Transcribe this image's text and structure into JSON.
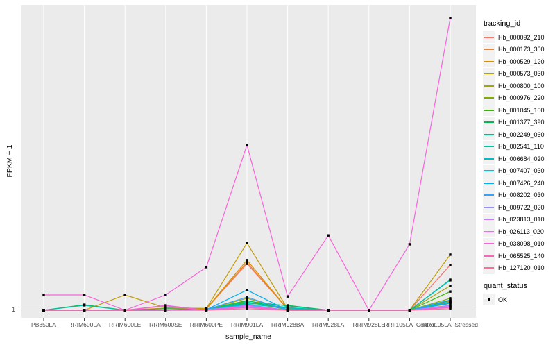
{
  "figure": {
    "y_axis": {
      "title": "FPKM + 1",
      "tick_label": "1"
    },
    "x_axis": {
      "title": "sample_name"
    },
    "legend_tracking": {
      "title": "tracking_id"
    },
    "legend_quant": {
      "title": "quant_status",
      "items": [
        {
          "label": "OK",
          "marker": "black-square"
        }
      ]
    },
    "colors": {
      "panel_bg": "#EBEBEB",
      "gridline": "#FFFFFF",
      "tick_text": "#4D4D4D",
      "axis_text": "#000000",
      "legend_key_bg": "#F2F2F2",
      "point": "#000000"
    }
  },
  "chart_data": {
    "type": "line",
    "title": "",
    "xlabel": "sample_name",
    "ylabel": "FPKM + 1",
    "x_categories": [
      "PB350LA",
      "RRIM600LA",
      "RRIM600LE",
      "RRIM600SE",
      "RRIM600PE",
      "RRIM901LA",
      "RRIM928BA",
      "RRIM928LA",
      "RRIM928LE",
      "RRII105LA_Control",
      "RRII105LA_Stressed"
    ],
    "y_axis_ticks": [
      "1"
    ],
    "scale_note": "Only the tick 'FPKM + 1 = 1' is labeled on the y axis (baseline). Series values below are estimated as the fraction of panel height above that baseline (0 = at 1, 1 = panel top).",
    "grid": true,
    "legend_position": "right",
    "point_marker": "every data point carries a small black square (quant_status = OK)",
    "series": [
      {
        "name": "Hb_000092_210",
        "color": "#F8766D",
        "values": [
          0,
          0,
          0,
          0,
          0.005,
          0.152,
          0.005,
          0,
          0,
          0,
          0.148
        ]
      },
      {
        "name": "Hb_000173_300",
        "color": "#EA8331",
        "values": [
          0,
          0,
          0,
          0,
          0.004,
          0.157,
          0.003,
          0,
          0,
          0,
          0.03
        ]
      },
      {
        "name": "Hb_000529_120",
        "color": "#D89000",
        "values": [
          0,
          0,
          0,
          0.007,
          0.005,
          0.164,
          0.004,
          0,
          0,
          0,
          0.022
        ]
      },
      {
        "name": "Hb_000573_030",
        "color": "#C09B00",
        "values": [
          0,
          0,
          0.05,
          0.008,
          0.006,
          0.22,
          0.005,
          0,
          0,
          0,
          0.182
        ]
      },
      {
        "name": "Hb_000800_100",
        "color": "#A3A500",
        "values": [
          0,
          0,
          0,
          0,
          0.002,
          0.039,
          0.002,
          0,
          0,
          0,
          0.08
        ]
      },
      {
        "name": "Hb_000976_220",
        "color": "#7CAE00",
        "values": [
          0,
          0,
          0,
          0,
          0.002,
          0.027,
          0.002,
          0,
          0,
          0,
          0.039
        ]
      },
      {
        "name": "Hb_001045_100",
        "color": "#39B600",
        "values": [
          0,
          0,
          0,
          0,
          0.002,
          0.032,
          0.002,
          0,
          0,
          0,
          0.061
        ]
      },
      {
        "name": "Hb_001377_390",
        "color": "#00BB4E",
        "values": [
          0,
          0.018,
          0,
          0,
          0.002,
          0.023,
          0.016,
          0,
          0,
          0,
          0.032
        ]
      },
      {
        "name": "Hb_002249_060",
        "color": "#00BF7D",
        "values": [
          0,
          0,
          0,
          0.005,
          0.002,
          0.03,
          0.014,
          0,
          0,
          0,
          0.1
        ]
      },
      {
        "name": "Hb_002541_110",
        "color": "#00C1A3",
        "values": [
          0,
          0.016,
          0,
          0,
          0.002,
          0.025,
          0.009,
          0,
          0,
          0,
          0.027
        ]
      },
      {
        "name": "Hb_006684_020",
        "color": "#00BFC4",
        "values": [
          0,
          0,
          0,
          0,
          0.002,
          0.02,
          0.007,
          0,
          0,
          0,
          0.098
        ]
      },
      {
        "name": "Hb_007407_030",
        "color": "#00BAE0",
        "values": [
          0,
          0,
          0,
          0,
          0.002,
          0.018,
          0,
          0,
          0,
          0,
          0.025
        ]
      },
      {
        "name": "Hb_007426_240",
        "color": "#00B0F6",
        "values": [
          0,
          0,
          0,
          0,
          0.002,
          0.066,
          0,
          0,
          0,
          0,
          0.023
        ]
      },
      {
        "name": "Hb_008202_030",
        "color": "#35A2FF",
        "values": [
          0,
          0,
          0,
          0,
          0.002,
          0.043,
          0,
          0,
          0,
          0,
          0.034
        ]
      },
      {
        "name": "Hb_009722_020",
        "color": "#9590FF",
        "values": [
          0,
          0,
          0,
          0,
          0.002,
          0.014,
          0,
          0,
          0,
          0,
          0.016
        ]
      },
      {
        "name": "Hb_023813_010",
        "color": "#C77CFF",
        "values": [
          0,
          0,
          0,
          0,
          0,
          0.011,
          0,
          0,
          0,
          0,
          0.014
        ]
      },
      {
        "name": "Hb_026113_020",
        "color": "#E76BF3",
        "values": [
          0,
          0,
          0,
          0.016,
          0,
          0.016,
          0,
          0,
          0,
          0,
          0.011
        ]
      },
      {
        "name": "Hb_038098_010",
        "color": "#FA62DB",
        "values": [
          0.05,
          0.05,
          0,
          0.05,
          0.141,
          0.541,
          0.045,
          0.245,
          0,
          0.216,
          0.957
        ]
      },
      {
        "name": "Hb_065525_140",
        "color": "#FF62BC",
        "values": [
          0,
          0,
          0,
          0.014,
          0,
          0.009,
          0,
          0,
          0,
          0,
          0.009
        ]
      },
      {
        "name": "Hb_127120_010",
        "color": "#FF6A98",
        "values": [
          0,
          0,
          0,
          0,
          0,
          0.005,
          0,
          0,
          0,
          0,
          0.005
        ]
      }
    ]
  }
}
